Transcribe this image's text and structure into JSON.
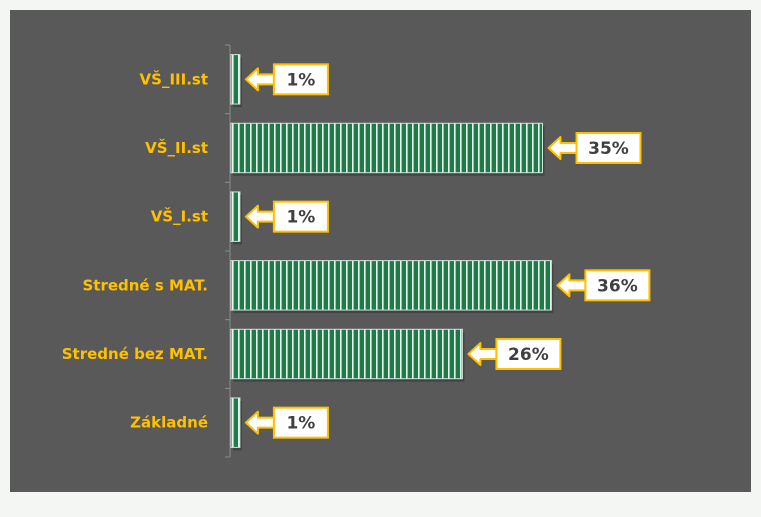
{
  "chart_data": {
    "type": "bar",
    "orientation": "horizontal",
    "categories": [
      "VŠ_III.st",
      "VŠ_II.st",
      "VŠ_I.st",
      "Stredné s MAT.",
      "Stredné bez MAT.",
      "Základné"
    ],
    "values": [
      1,
      35,
      1,
      36,
      26,
      1
    ],
    "data_labels": [
      "1%",
      "35%",
      "1%",
      "36%",
      "26%",
      "1%"
    ],
    "value_unit": "%",
    "xlim": [
      0,
      40
    ],
    "grid": false,
    "legend": "none",
    "colors": {
      "background": "#595959",
      "bar": "#1f7a4a",
      "bar_stripe": "#ffffff",
      "category_label": "#ffc000",
      "callout_fill": "#ffffff",
      "callout_text": "#404040",
      "arrow": "#ffc000"
    }
  }
}
